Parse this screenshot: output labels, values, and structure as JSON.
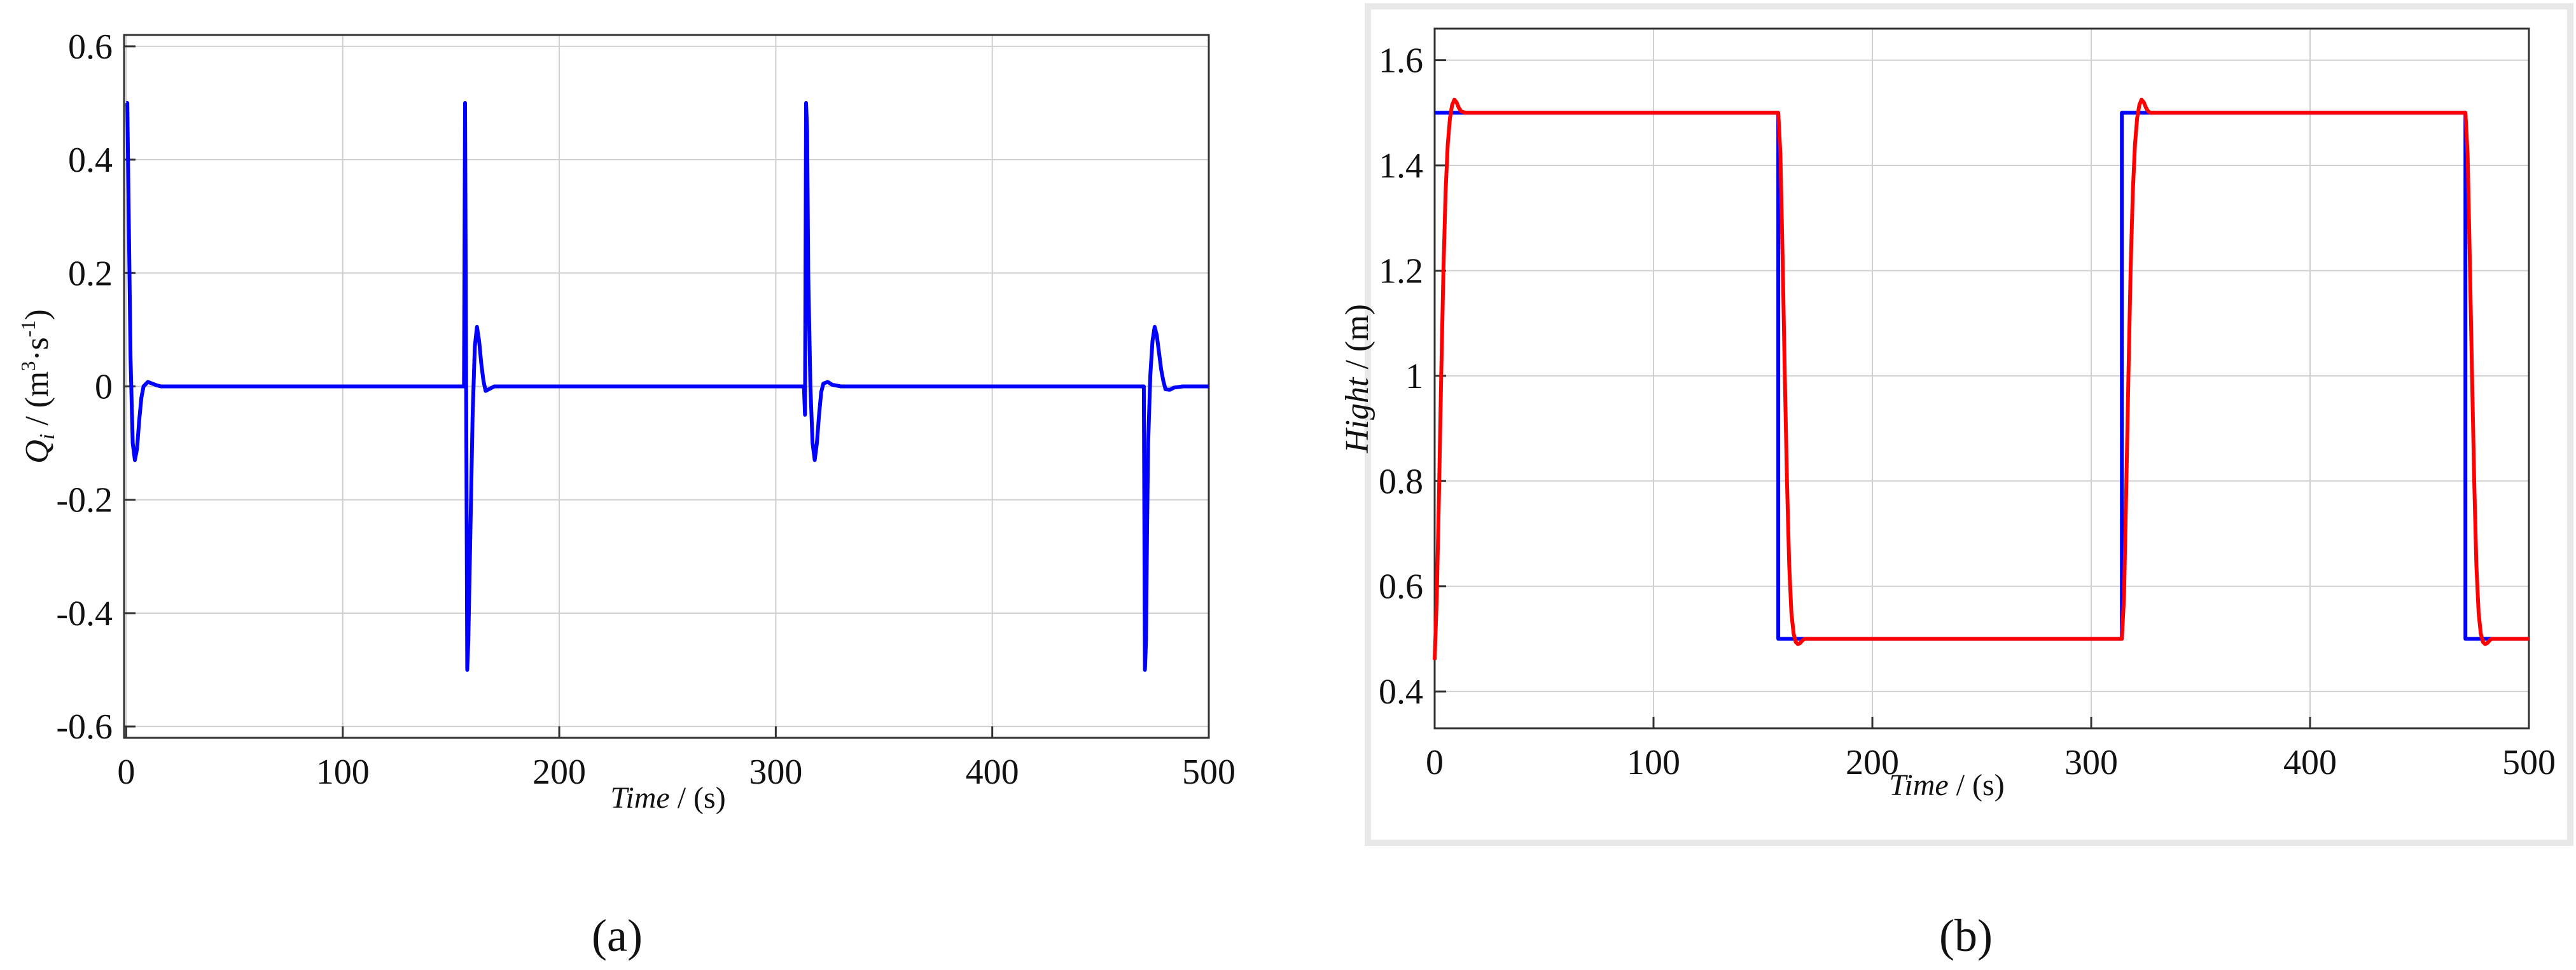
{
  "chart_data": [
    {
      "type": "line",
      "panel_label": "(a)",
      "x_label": {
        "italic": "Time",
        "rest": " / (s)"
      },
      "y_label": {
        "italic": "Q",
        "sub": "i",
        "rest": " / (m",
        "sup": "3",
        "rest2": "·s",
        "sup2": "-1",
        "rest3": ")"
      },
      "xlim": [
        -1,
        500
      ],
      "ylim": [
        -0.62,
        0.62
      ],
      "x_ticks": [
        0,
        100,
        200,
        300,
        400,
        500
      ],
      "y_ticks": [
        0.6,
        0.4,
        0.2,
        0,
        -0.2,
        -0.4,
        -0.6
      ],
      "y_tick_labels": [
        "0.6",
        "0.4",
        "0.2",
        "0",
        "-0.2",
        "-0.4",
        "-0.6"
      ],
      "grid": true,
      "series": [
        {
          "color": "#0000ff",
          "x": [
            0,
            0.5,
            1,
            2,
            3,
            4,
            5,
            6,
            7,
            8,
            10,
            12,
            14,
            16,
            20,
            156,
            156.5,
            157,
            157.5,
            158,
            159,
            160,
            161,
            162,
            163,
            164,
            165,
            166,
            168,
            170,
            174,
            313,
            313.5,
            314,
            314.5,
            315,
            316,
            317,
            318,
            319,
            320,
            321,
            322,
            324,
            326,
            330,
            470,
            470.5,
            471,
            471.5,
            472,
            473,
            474,
            475,
            476,
            477,
            478,
            479,
            480,
            482,
            484,
            488,
            500
          ],
          "y": [
            0.5,
            0.5,
            0.35,
            0.05,
            -0.1,
            -0.13,
            -0.11,
            -0.06,
            -0.02,
            0.0,
            0.008,
            0.005,
            0.002,
            0.0,
            0.0,
            0.0,
            0.5,
            0.0,
            -0.5,
            -0.45,
            -0.25,
            -0.05,
            0.07,
            0.105,
            0.08,
            0.04,
            0.01,
            -0.008,
            -0.004,
            0.0,
            0.0,
            0.0,
            -0.05,
            0.5,
            0.45,
            0.2,
            0.0,
            -0.1,
            -0.13,
            -0.1,
            -0.05,
            -0.01,
            0.005,
            0.008,
            0.003,
            0.0,
            0.0,
            -0.5,
            -0.45,
            -0.25,
            -0.1,
            0.02,
            0.08,
            0.105,
            0.09,
            0.06,
            0.03,
            0.01,
            -0.005,
            -0.006,
            -0.002,
            0.0,
            0.0
          ]
        }
      ]
    },
    {
      "type": "line",
      "panel_label": "(b)",
      "x_label": {
        "italic": "Time",
        "rest": " / (s)"
      },
      "y_label": {
        "italic": "Hight",
        "rest": " / (m)"
      },
      "xlim": [
        0,
        500
      ],
      "ylim": [
        0.33,
        1.66
      ],
      "x_ticks": [
        0,
        100,
        200,
        300,
        400,
        500
      ],
      "y_ticks": [
        1.6,
        1.4,
        1.2,
        1,
        0.8,
        0.6,
        0.4
      ],
      "y_tick_labels": [
        "1.6",
        "1.4",
        "1.2",
        "1",
        "0.8",
        "0.6",
        "0.4"
      ],
      "grid": true,
      "series": [
        {
          "color": "#0000ff",
          "x": [
            0,
            157,
            157,
            314,
            314,
            471,
            471,
            500
          ],
          "y": [
            1.5,
            1.5,
            0.5,
            0.5,
            1.5,
            1.5,
            0.5,
            0.5
          ]
        },
        {
          "color": "#ff0000",
          "x": [
            0,
            1,
            2,
            3,
            4,
            5,
            6,
            7,
            8,
            9,
            10,
            11,
            12,
            14,
            16,
            18,
            22,
            157,
            158,
            159,
            160,
            161,
            162,
            163,
            164,
            165,
            166,
            167,
            168,
            169,
            170,
            172,
            174,
            176,
            180,
            314,
            315,
            316,
            317,
            318,
            319,
            320,
            321,
            322,
            323,
            324,
            325,
            326,
            327,
            330,
            334,
            338,
            471,
            472,
            473,
            474,
            475,
            476,
            477,
            478,
            479,
            480,
            481,
            482,
            483,
            485,
            487,
            490,
            500
          ],
          "y": [
            0.46,
            0.58,
            0.78,
            1.0,
            1.2,
            1.35,
            1.44,
            1.49,
            1.515,
            1.525,
            1.52,
            1.51,
            1.503,
            1.5,
            1.5,
            1.5,
            1.5,
            1.5,
            1.42,
            1.22,
            1.0,
            0.8,
            0.64,
            0.55,
            0.51,
            0.494,
            0.49,
            0.492,
            0.497,
            0.5,
            0.5,
            0.5,
            0.5,
            0.5,
            0.5,
            0.5,
            0.58,
            0.78,
            1.0,
            1.2,
            1.35,
            1.44,
            1.49,
            1.515,
            1.525,
            1.52,
            1.51,
            1.503,
            1.5,
            1.5,
            1.5,
            1.5,
            1.5,
            1.42,
            1.22,
            1.0,
            0.8,
            0.64,
            0.55,
            0.51,
            0.494,
            0.49,
            0.492,
            0.497,
            0.5,
            0.5,
            0.5,
            0.5,
            0.5
          ]
        }
      ]
    }
  ]
}
